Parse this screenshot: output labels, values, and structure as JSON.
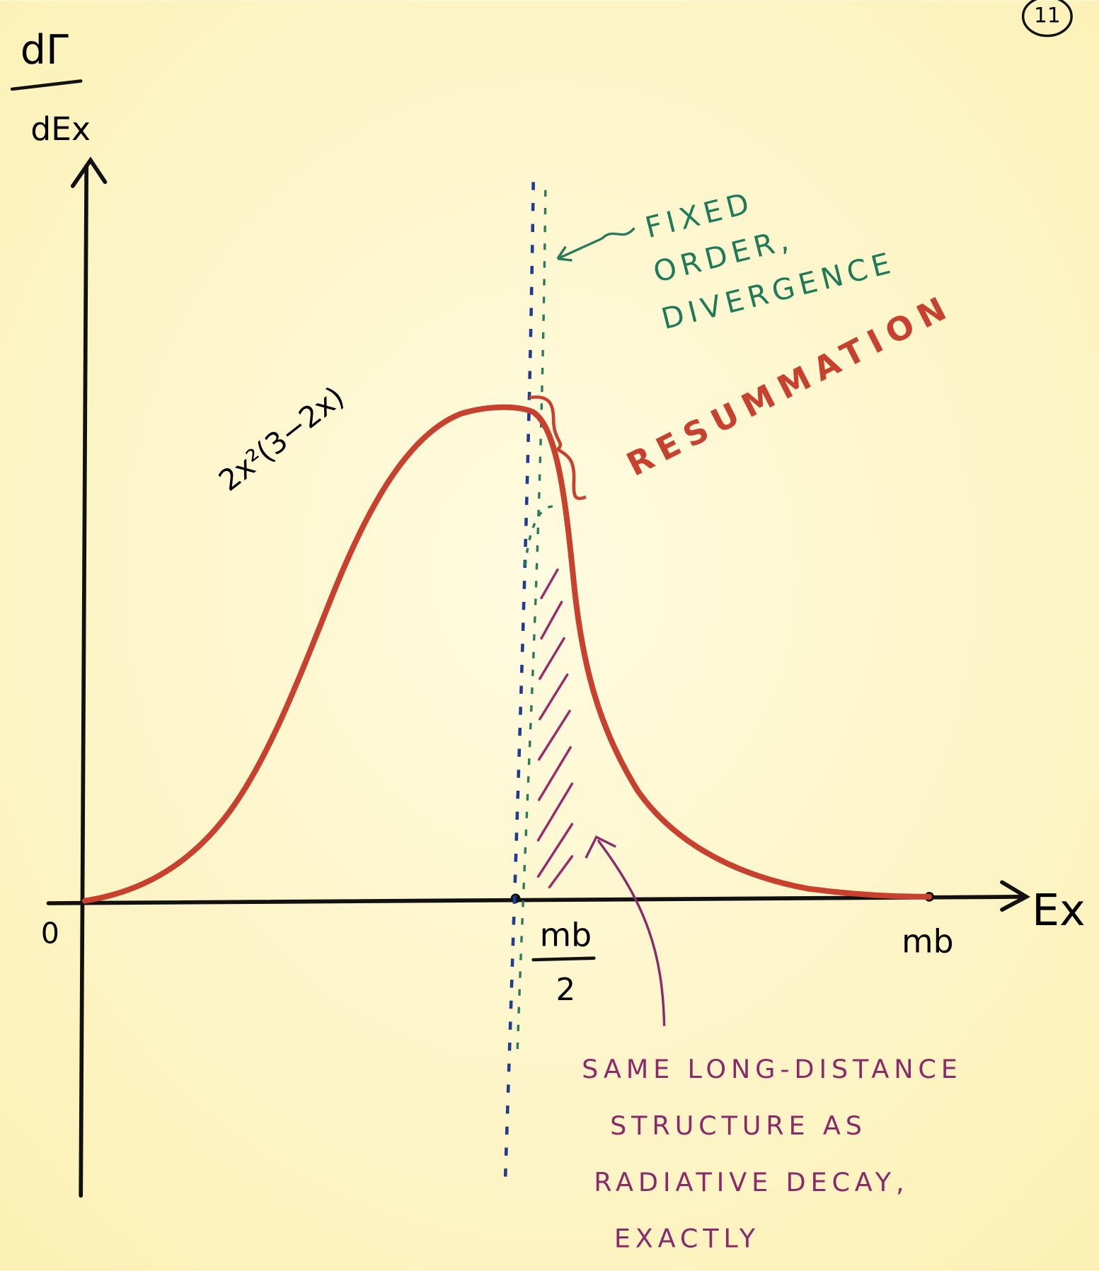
{
  "page_number": "11",
  "y_axis": {
    "label_numerator": "dΓ",
    "label_denominator": "dEx"
  },
  "x_axis": {
    "label": "Ex",
    "origin": "0",
    "half_mass_numerator": "mb",
    "half_mass_denominator": "2",
    "mass": "mb"
  },
  "formula": "2x²(3−2x)",
  "fixed_order": {
    "lines": [
      "FIXED",
      "ORDER,",
      "DIVERGENCE"
    ]
  },
  "resummation": "RESUMMATION",
  "long_distance": {
    "lines": [
      "SAME LONG-DISTANCE",
      "STRUCTURE AS",
      "RADIATIVE DECAY,",
      "EXACTLY"
    ]
  }
}
